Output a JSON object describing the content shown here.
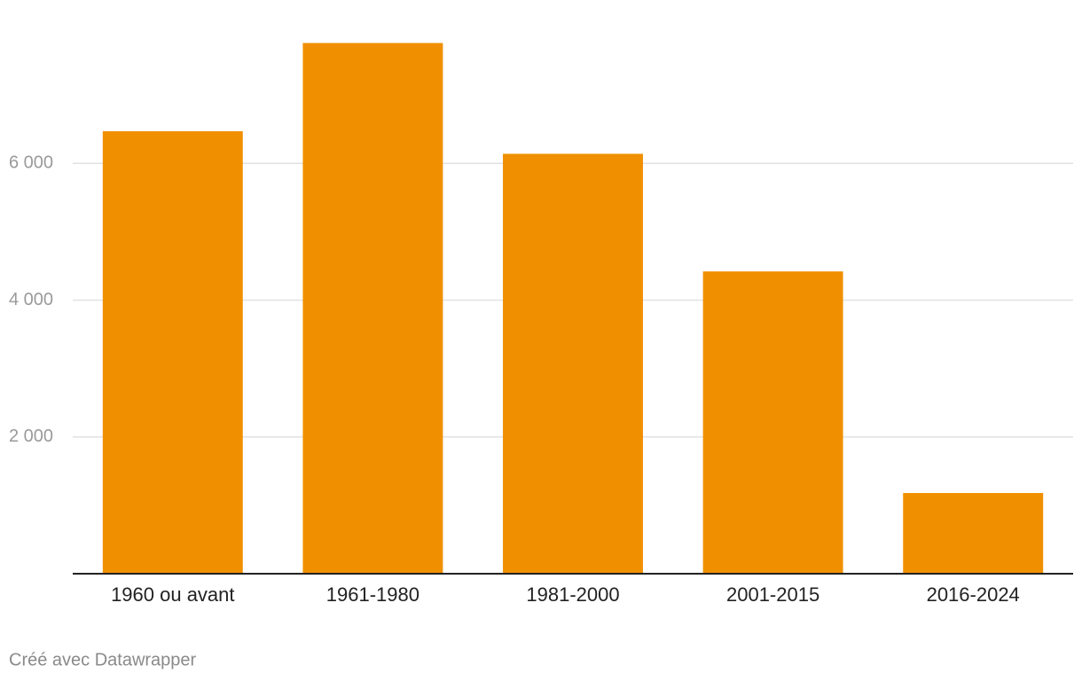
{
  "chart_data": {
    "type": "bar",
    "categories": [
      "1960 ou avant",
      "1961-1980",
      "1981-2000",
      "2001-2015",
      "2016-2024"
    ],
    "values": [
      6470,
      7760,
      6140,
      4420,
      1180
    ],
    "color": "#f09000",
    "ylim": [
      0,
      8000
    ],
    "yticks": [
      {
        "value": 2000,
        "label": "2 000"
      },
      {
        "value": 4000,
        "label": "4 000"
      },
      {
        "value": 6000,
        "label": "6 000"
      }
    ],
    "grid": true,
    "footer": "Créé avec Datawrapper"
  }
}
